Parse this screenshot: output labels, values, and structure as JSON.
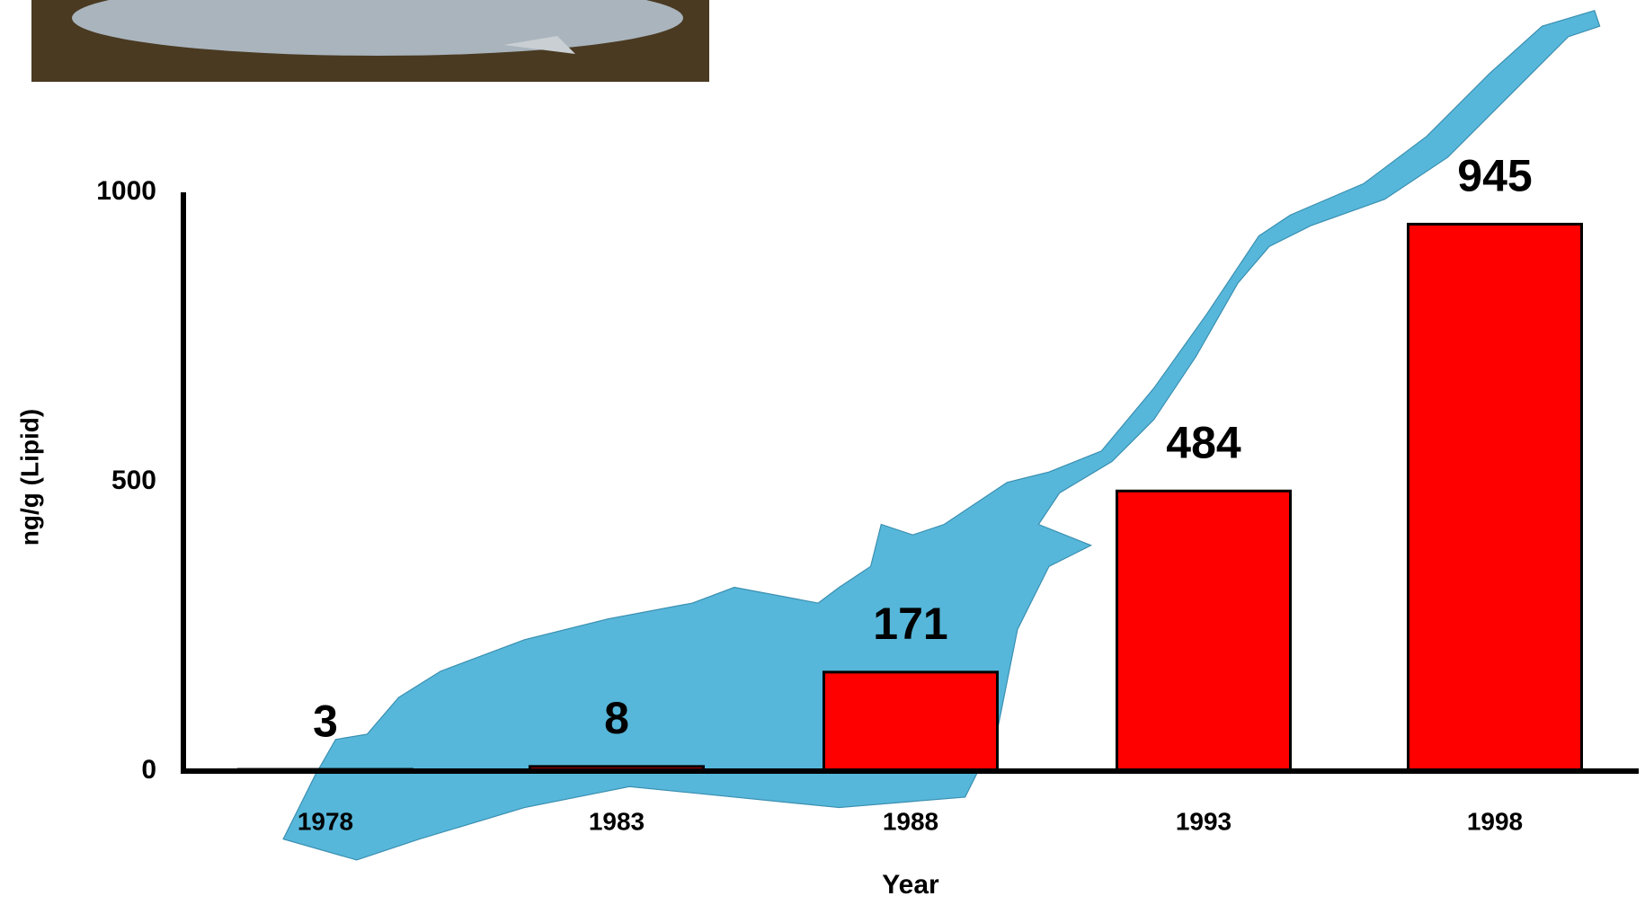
{
  "chart_data": {
    "type": "bar",
    "y_label": "ng/g (Lipid)",
    "x_label": "Year",
    "categories": [
      "1978",
      "1983",
      "1988",
      "1993",
      "1998"
    ],
    "values": [
      3,
      8,
      171,
      484,
      945
    ],
    "color": "#ff0000",
    "ylim": [
      0,
      1000
    ],
    "yticks": [
      0,
      500,
      1000
    ],
    "grid": false
  }
}
